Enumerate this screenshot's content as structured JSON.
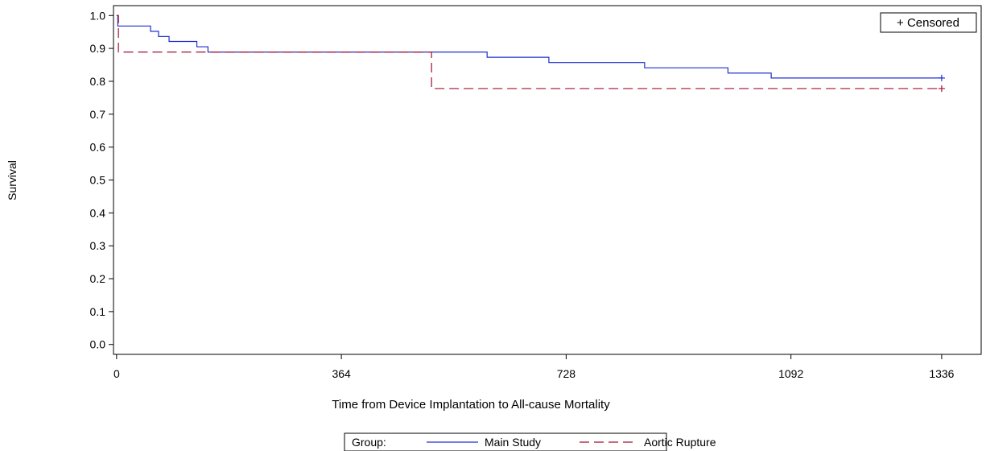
{
  "chart_data": {
    "type": "line",
    "step": true,
    "xlabel": "Time from Device Implantation to All-cause Mortality",
    "ylabel": "Survival",
    "xlim": [
      -5,
      1400
    ],
    "ylim": [
      -0.03,
      1.03
    ],
    "xticks": [
      0,
      364,
      728,
      1092,
      1336
    ],
    "yticks": [
      0.0,
      0.1,
      0.2,
      0.3,
      0.4,
      0.5,
      0.6,
      0.7,
      0.8,
      0.9,
      1.0
    ],
    "ytick_labels": [
      "0.0",
      "0.1",
      "0.2",
      "0.3",
      "0.4",
      "0.5",
      "0.6",
      "0.7",
      "0.8",
      "0.9",
      "1.0"
    ],
    "censored_legend": "+ Censored",
    "legend": {
      "title": "Group:",
      "placement": "bottom-center"
    },
    "grid": false,
    "series": [
      {
        "name": "Main Study",
        "color": "#1f2fcf",
        "dash": "solid",
        "points": [
          [
            0,
            1.0
          ],
          [
            2,
            0.968
          ],
          [
            55,
            0.952
          ],
          [
            68,
            0.936
          ],
          [
            85,
            0.921
          ],
          [
            130,
            0.905
          ],
          [
            148,
            0.889
          ],
          [
            600,
            0.873
          ],
          [
            700,
            0.857
          ],
          [
            855,
            0.841
          ],
          [
            990,
            0.825
          ],
          [
            1060,
            0.81
          ],
          [
            1336,
            0.81
          ]
        ],
        "censored": [
          [
            1336,
            0.81
          ]
        ]
      },
      {
        "name": "Aortic Rupture",
        "color": "#a01030",
        "dash": "dashed",
        "points": [
          [
            0,
            1.0
          ],
          [
            3,
            0.889
          ],
          [
            510,
            0.778
          ],
          [
            1336,
            0.778
          ]
        ],
        "censored": [
          [
            1336,
            0.778
          ]
        ]
      }
    ]
  }
}
